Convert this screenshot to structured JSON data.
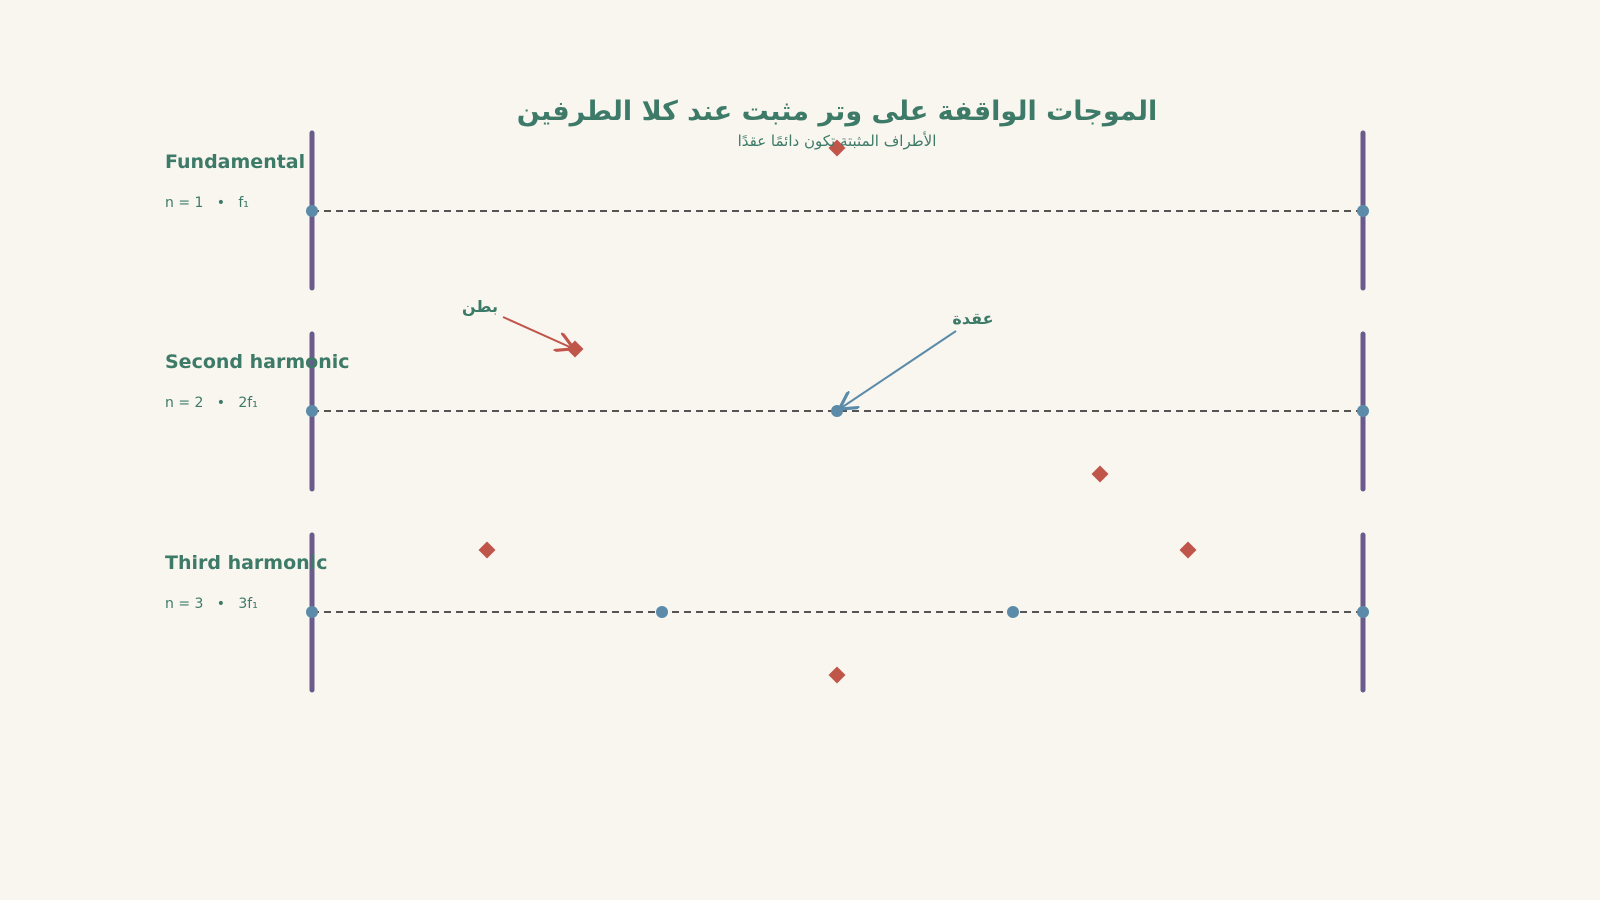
{
  "header": {
    "title": "الموجات الواقفة على وتر مثبت عند كلا الطرفين",
    "subtitle": "الأطراف المثبتة تكون دائمًا عقدًا"
  },
  "rows": [
    {
      "name": "Fundamental",
      "formula": "n = 1   •   f₁"
    },
    {
      "name": "Second harmonic",
      "formula": "n = 2   •   2f₁"
    },
    {
      "name": "Third harmonic",
      "formula": "n = 3   •   3f₁"
    }
  ],
  "annotations": {
    "antinode": "بطن",
    "node": "عقدة"
  }
}
